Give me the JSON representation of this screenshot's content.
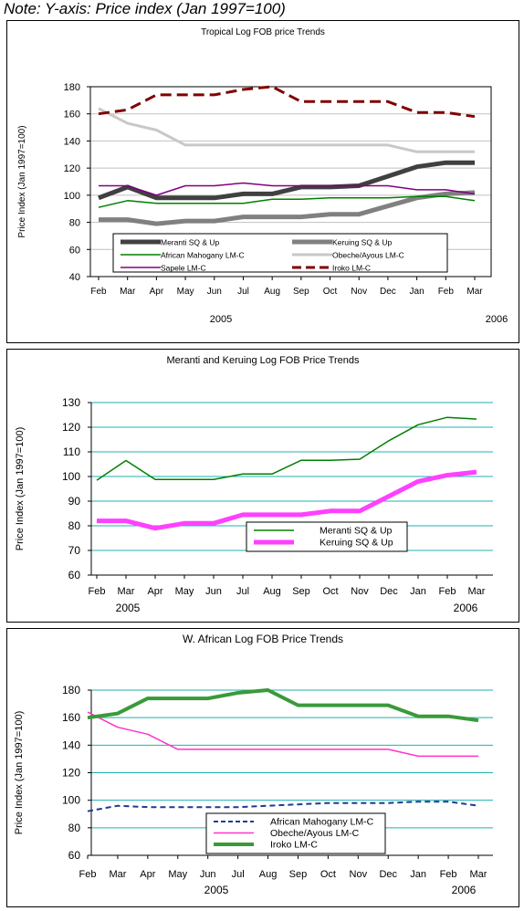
{
  "note": "Note: Y-axis: Price index (Jan 1997=100)",
  "chart_data": [
    {
      "type": "line",
      "title": "Tropical Log FOB price Trends",
      "ylabel": "Price Index (Jan 1997=100)",
      "categories": [
        "Feb",
        "Mar",
        "Apr",
        "May",
        "Jun",
        "Jul",
        "Aug",
        "Sep",
        "Oct",
        "Nov",
        "Dec",
        "Jan",
        "Feb",
        "Mar"
      ],
      "year_labels": [
        "2005",
        "2006"
      ],
      "ylim": [
        40,
        180
      ],
      "yticks": [
        40,
        60,
        80,
        100,
        120,
        140,
        160,
        180
      ],
      "grid": "horizontal",
      "legend_position": "bottom-inside",
      "series": [
        {
          "name": "Meranti SQ & Up",
          "color": "#404040",
          "style": "solid",
          "values": [
            98,
            106,
            98,
            98,
            98,
            101,
            101,
            106,
            106,
            107,
            114,
            121,
            124,
            124
          ]
        },
        {
          "name": "Keruing SQ & Up",
          "color": "#808080",
          "style": "solid",
          "values": [
            82,
            82,
            79,
            81,
            81,
            84,
            84,
            84,
            86,
            86,
            92,
            98,
            101,
            102
          ]
        },
        {
          "name": "African Mahogany LM-C",
          "color": "#008000",
          "style": "solid",
          "values": [
            91,
            96,
            94,
            94,
            94,
            94,
            97,
            97,
            98,
            98,
            98,
            99,
            99,
            96
          ]
        },
        {
          "name": "Obeche/Ayous LM-C",
          "color": "#c8c8c8",
          "style": "solid",
          "values": [
            164,
            153,
            148,
            137,
            137,
            137,
            137,
            137,
            137,
            137,
            137,
            132,
            132,
            132
          ]
        },
        {
          "name": "Sapele LM-C",
          "color": "#800080",
          "style": "solid",
          "values": [
            107,
            107,
            100,
            107,
            107,
            109,
            107,
            107,
            107,
            107,
            107,
            104,
            104,
            101
          ]
        },
        {
          "name": "Iroko LM-C",
          "color": "#800000",
          "style": "dashed",
          "values": [
            160,
            163,
            174,
            174,
            174,
            178,
            180,
            169,
            169,
            169,
            169,
            161,
            161,
            158
          ]
        }
      ]
    },
    {
      "type": "line",
      "title": "Meranti and Keruing Log FOB Price Trends",
      "ylabel": "Price Index (Jan 1997=100)",
      "categories": [
        "Feb",
        "Mar",
        "Apr",
        "May",
        "Jun",
        "Jul",
        "Aug",
        "Sep",
        "Oct",
        "Nov",
        "Dec",
        "Jan",
        "Feb",
        "Mar"
      ],
      "year_labels": [
        "2005",
        "2006"
      ],
      "ylim": [
        60,
        130
      ],
      "yticks": [
        60,
        70,
        80,
        90,
        100,
        110,
        120,
        130
      ],
      "grid": "horizontal",
      "legend_position": "bottom-right-inside",
      "series": [
        {
          "name": "Meranti SQ & Up",
          "color": "#008000",
          "style": "solid",
          "values": [
            98.5,
            106.5,
            98.8,
            98.8,
            98.8,
            101,
            101,
            106.6,
            106.6,
            107,
            114.5,
            121,
            124,
            123.3
          ]
        },
        {
          "name": "Keruing SQ & Up",
          "color": "#ff40ff",
          "style": "solid",
          "values": [
            82,
            82,
            79,
            81,
            81,
            84.5,
            84.5,
            84.5,
            86,
            86,
            92,
            98,
            100.5,
            101.8
          ]
        }
      ]
    },
    {
      "type": "line",
      "title": "W. African Log FOB Price Trends",
      "ylabel": "Price Index (Jan 1997=100)",
      "categories": [
        "Feb",
        "Mar",
        "Apr",
        "May",
        "Jun",
        "Jul",
        "Aug",
        "Sep",
        "Oct",
        "Nov",
        "Dec",
        "Jan",
        "Feb",
        "Mar"
      ],
      "year_labels": [
        "2005",
        "2006"
      ],
      "ylim": [
        60,
        180
      ],
      "yticks": [
        60,
        80,
        100,
        120,
        140,
        160,
        180
      ],
      "grid": "horizontal",
      "legend_position": "bottom-center-inside",
      "series": [
        {
          "name": "African Mahogany LM-C",
          "color": "#1f3a93",
          "style": "dashed",
          "values": [
            92,
            96,
            95,
            95,
            95,
            95,
            96,
            97,
            98,
            98,
            98,
            99,
            99,
            96
          ]
        },
        {
          "name": "Obeche/Ayous LM-C",
          "color": "#ff33cc",
          "style": "solid",
          "values": [
            164,
            153,
            148,
            137,
            137,
            137,
            137,
            137,
            137,
            137,
            137,
            132,
            132,
            132
          ]
        },
        {
          "name": "Iroko LM-C",
          "color": "#3a9a3a",
          "style": "solid",
          "values": [
            160,
            163,
            174,
            174,
            174,
            178,
            180,
            169,
            169,
            169,
            169,
            161,
            161,
            158
          ]
        }
      ]
    }
  ]
}
